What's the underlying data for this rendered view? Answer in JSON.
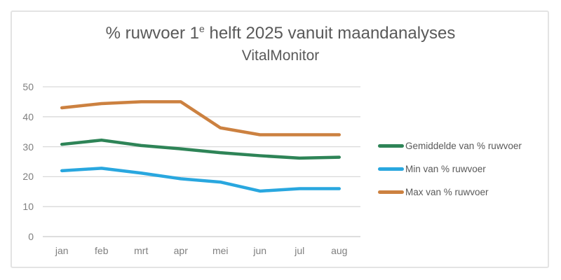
{
  "palette": {
    "frame_border": "#e3e3e3",
    "title_text": "#595959",
    "tick_text": "#7f7f7f",
    "legend_text": "#595959",
    "gridline": "#d9d9d9",
    "axis_line": "#c9c9c9",
    "background": "#ffffff"
  },
  "chart_data": {
    "type": "line",
    "title": {
      "part1": "% ruwvoer 1",
      "superscript": "e",
      "part2": " helft 2025 vanuit maandanalyses",
      "line2": "VitalMonitor"
    },
    "categories": [
      "jan",
      "feb",
      "mrt",
      "apr",
      "mei",
      "jun",
      "jul",
      "aug"
    ],
    "series": [
      {
        "name": "Gemiddelde van % ruwvoer",
        "color": "#2e8457",
        "values": [
          30.8,
          32.2,
          30.4,
          29.3,
          28,
          27,
          26.2,
          26.5
        ]
      },
      {
        "name": "Min van % ruwvoer",
        "color": "#29a7df",
        "values": [
          22,
          22.8,
          21.2,
          19.3,
          18.2,
          15.2,
          16,
          16
        ]
      },
      {
        "name": "Max van % ruwvoer",
        "color": "#cc8140",
        "values": [
          43,
          44.4,
          45,
          45,
          36.3,
          34,
          34,
          34
        ]
      }
    ],
    "ylim": [
      0,
      50
    ],
    "yticks": [
      0,
      10,
      20,
      30,
      40,
      50
    ],
    "xlabel": "",
    "ylabel": "",
    "grid": "horizontal",
    "legend_position": "right",
    "line_width": 4.5,
    "markers": false
  }
}
